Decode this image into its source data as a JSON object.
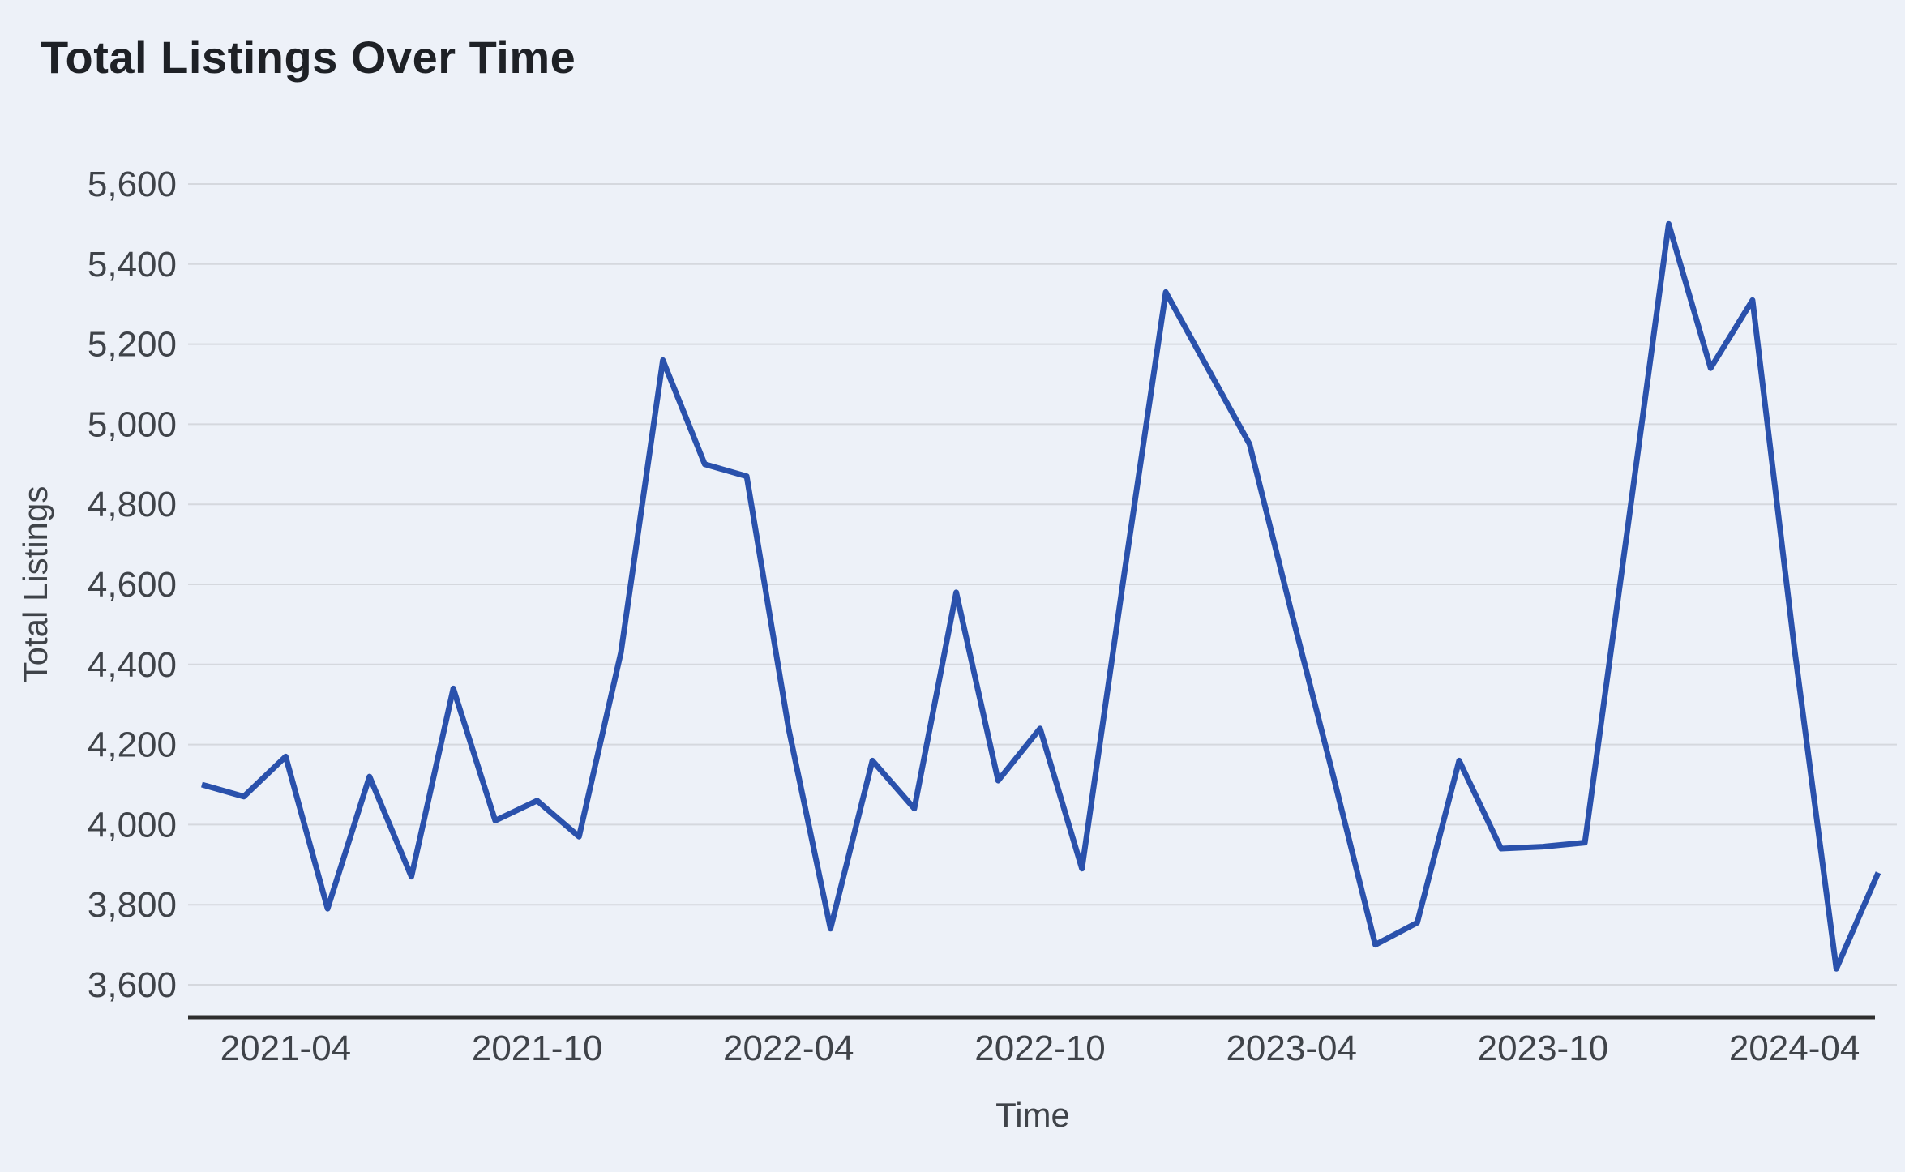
{
  "title": "Total Listings Over Time",
  "chart_data": {
    "type": "line",
    "title": "Total Listings Over Time",
    "xlabel": "Time",
    "ylabel": "Total Listings",
    "ylim": [
      3600,
      5600
    ],
    "ytick_step": 200,
    "grid": true,
    "legend": false,
    "x": [
      "2021-02",
      "2021-03",
      "2021-04",
      "2021-05",
      "2021-06",
      "2021-07",
      "2021-08",
      "2021-09",
      "2021-10",
      "2021-11",
      "2021-12",
      "2022-01",
      "2022-02",
      "2022-03",
      "2022-04",
      "2022-05",
      "2022-06",
      "2022-07",
      "2022-08",
      "2022-09",
      "2022-10",
      "2022-11",
      "2022-12",
      "2023-01",
      "2023-02",
      "2023-03",
      "2023-04",
      "2023-05",
      "2023-06",
      "2023-07",
      "2023-08",
      "2023-09",
      "2023-10",
      "2023-11",
      "2023-12",
      "2024-01",
      "2024-02",
      "2024-03",
      "2024-04",
      "2024-05",
      "2024-06"
    ],
    "series": [
      {
        "name": "Total Listings",
        "values": [
          4100,
          4070,
          4170,
          3790,
          4120,
          3870,
          4340,
          4010,
          4060,
          3970,
          4430,
          5160,
          4900,
          4870,
          4240,
          3740,
          4160,
          4040,
          4580,
          4110,
          4240,
          3890,
          4620,
          5330,
          5140,
          4950,
          4530,
          4120,
          3700,
          3755,
          4160,
          3940,
          3945,
          3955,
          4725,
          5500,
          5140,
          5310,
          4440,
          3640,
          3880
        ]
      }
    ],
    "xticks": [
      "2021-04",
      "2021-10",
      "2022-04",
      "2022-10",
      "2023-04",
      "2023-10",
      "2024-04"
    ],
    "colors": {
      "line": "#2a51ac",
      "background": "#edf1f8",
      "gridline": "#d5d8de",
      "axis_line": "#2e2e2e",
      "tick_text": "#3f4349",
      "title_text": "#1e2126"
    }
  }
}
